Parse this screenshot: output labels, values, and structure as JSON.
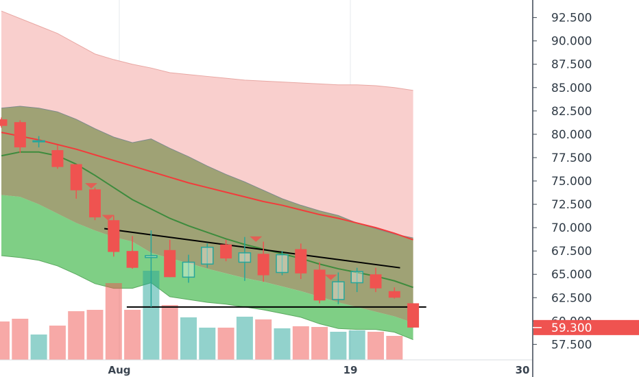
{
  "chart_data": {
    "type": "candlestick",
    "x_axis": {
      "tick_labels": [
        "Aug",
        "19",
        "30"
      ]
    },
    "y_axis": {
      "range": [
        56.5,
        93.5
      ],
      "tick_labels": [
        "92.500",
        "90.000",
        "87.500",
        "85.000",
        "82.500",
        "80.000",
        "77.500",
        "75.000",
        "72.500",
        "70.000",
        "67.500",
        "65.000",
        "62.500",
        "60.000",
        "57.500"
      ],
      "current_price_label": "59.300",
      "current_price_value": 59.3,
      "current_price_color": "#ef5350"
    },
    "colors": {
      "up": "#26a69a",
      "down": "#ef5350",
      "ma_red": "#f23b3b",
      "ma_green": "#3d8b3d",
      "cloud_outer": "#f9cfcd",
      "cloud_olive": "#9fa275",
      "cloud_green": "#7fcf85",
      "trendline": "#000000"
    },
    "candles": [
      {
        "o": 81.6,
        "h": 81.8,
        "l": 80.7,
        "c": 80.9
      },
      {
        "o": 81.3,
        "h": 81.5,
        "l": 78.0,
        "c": 78.6
      },
      {
        "o": 79.2,
        "h": 79.8,
        "l": 78.6,
        "c": 79.3
      },
      {
        "o": 78.3,
        "h": 78.8,
        "l": 76.3,
        "c": 76.5
      },
      {
        "o": 76.8,
        "h": 76.8,
        "l": 73.1,
        "c": 74.0
      },
      {
        "o": 74.1,
        "h": 74.3,
        "l": 70.8,
        "c": 71.1
      },
      {
        "o": 70.8,
        "h": 71.3,
        "l": 66.9,
        "c": 67.4
      },
      {
        "o": 67.5,
        "h": 69.1,
        "l": 65.6,
        "c": 65.7
      },
      {
        "o": 66.8,
        "h": 69.7,
        "l": 61.5,
        "c": 67.0
      },
      {
        "o": 67.6,
        "h": 68.7,
        "l": 64.7,
        "c": 64.7
      },
      {
        "o": 64.7,
        "h": 67.1,
        "l": 64.1,
        "c": 66.3
      },
      {
        "o": 66.1,
        "h": 68.3,
        "l": 65.7,
        "c": 67.9
      },
      {
        "o": 68.2,
        "h": 68.7,
        "l": 66.4,
        "c": 66.7
      },
      {
        "o": 66.3,
        "h": 69.0,
        "l": 64.3,
        "c": 67.3
      },
      {
        "o": 67.2,
        "h": 68.5,
        "l": 64.2,
        "c": 64.9
      },
      {
        "o": 65.2,
        "h": 67.5,
        "l": 64.9,
        "c": 67.1
      },
      {
        "o": 67.7,
        "h": 68.3,
        "l": 64.5,
        "c": 65.1
      },
      {
        "o": 65.5,
        "h": 66.3,
        "l": 61.9,
        "c": 62.2
      },
      {
        "o": 62.3,
        "h": 65.2,
        "l": 61.8,
        "c": 64.2
      },
      {
        "o": 64.1,
        "h": 65.7,
        "l": 63.1,
        "c": 65.3
      },
      {
        "o": 65.0,
        "h": 65.7,
        "l": 63.1,
        "c": 63.5
      },
      {
        "o": 63.2,
        "h": 63.6,
        "l": 62.4,
        "c": 62.5
      },
      {
        "o": 61.9,
        "h": 61.9,
        "l": 59.3,
        "c": 59.3
      }
    ],
    "volumes": [
      {
        "v": 56,
        "dir": "down"
      },
      {
        "v": 60,
        "dir": "down"
      },
      {
        "v": 37,
        "dir": "up"
      },
      {
        "v": 50,
        "dir": "down"
      },
      {
        "v": 71,
        "dir": "down"
      },
      {
        "v": 73,
        "dir": "down"
      },
      {
        "v": 112,
        "dir": "down"
      },
      {
        "v": 73,
        "dir": "down"
      },
      {
        "v": 130,
        "dir": "up"
      },
      {
        "v": 80,
        "dir": "down"
      },
      {
        "v": 62,
        "dir": "up"
      },
      {
        "v": 47,
        "dir": "up"
      },
      {
        "v": 47,
        "dir": "down"
      },
      {
        "v": 63,
        "dir": "up"
      },
      {
        "v": 59,
        "dir": "down"
      },
      {
        "v": 46,
        "dir": "up"
      },
      {
        "v": 49,
        "dir": "down"
      },
      {
        "v": 48,
        "dir": "down"
      },
      {
        "v": 41,
        "dir": "up"
      },
      {
        "v": 43,
        "dir": "up"
      },
      {
        "v": 41,
        "dir": "down"
      },
      {
        "v": 35,
        "dir": "down"
      },
      {
        "v": 0,
        "dir": "down"
      }
    ],
    "bands": {
      "outer_upper": [
        93.2,
        92.4,
        91.6,
        90.8,
        89.7,
        88.6,
        88.0,
        87.5,
        87.1,
        86.6,
        86.4,
        86.2,
        86.0,
        85.8,
        85.7,
        85.6,
        85.5,
        85.4,
        85.3,
        85.3,
        85.2,
        85.0,
        84.7
      ],
      "outer_lower": [
        70.0,
        69.9,
        69.7,
        69.5,
        69.2,
        68.9,
        68.6,
        68.3,
        68.0,
        67.7,
        67.4,
        67.0,
        66.5,
        65.8,
        65.0,
        64.2,
        63.5,
        62.8,
        62.0,
        61.2,
        60.5,
        59.9,
        59.4
      ],
      "olive_upper": [
        82.8,
        83.0,
        82.8,
        82.4,
        81.6,
        80.6,
        79.7,
        79.1,
        79.5,
        78.5,
        77.6,
        76.6,
        75.7,
        74.9,
        74.0,
        73.1,
        72.4,
        71.8,
        71.3,
        70.5,
        69.9,
        69.3,
        68.9
      ],
      "olive_lower": [
        73.5,
        73.3,
        72.5,
        71.5,
        70.5,
        69.7,
        69.0,
        68.5,
        67.3,
        66.7,
        66.2,
        65.6,
        65.1,
        64.6,
        64.2,
        63.7,
        63.2,
        62.6,
        62.0,
        61.5,
        61.0,
        60.5,
        59.8
      ],
      "green_lower": [
        67.0,
        66.8,
        66.5,
        65.9,
        65.0,
        64.0,
        63.5,
        63.5,
        64.1,
        62.6,
        62.3,
        62.0,
        61.8,
        61.5,
        61.2,
        60.8,
        60.4,
        59.7,
        59.2,
        59.1,
        59.1,
        58.8,
        58.0
      ],
      "ma_red": [
        80.2,
        79.8,
        79.4,
        78.9,
        78.4,
        77.8,
        77.2,
        76.6,
        76.0,
        75.4,
        74.8,
        74.3,
        73.8,
        73.3,
        72.8,
        72.4,
        71.9,
        71.4,
        71.0,
        70.5,
        70.0,
        69.4,
        68.7
      ],
      "ma_green": [
        77.7,
        78.1,
        78.1,
        77.7,
        76.8,
        75.6,
        74.3,
        73.0,
        72.0,
        71.0,
        70.2,
        69.5,
        68.8,
        68.2,
        67.7,
        67.2,
        66.7,
        66.1,
        65.6,
        65.2,
        64.8,
        64.3,
        63.6
      ]
    },
    "trendlines": [
      {
        "from": {
          "candle": 5.5,
          "value": 69.9
        },
        "to": {
          "candle": 21.3,
          "value": 65.7
        }
      },
      {
        "from": {
          "candle": 6.7,
          "value": 61.5
        },
        "to": {
          "candle": 22.7,
          "value": 61.5
        }
      }
    ],
    "markers": [
      {
        "candle": 4.8,
        "value": 74.4,
        "type": "down-triangle"
      },
      {
        "candle": 5.7,
        "value": 71.0,
        "type": "down-triangle"
      },
      {
        "candle": 13.6,
        "value": 68.7,
        "type": "down-triangle"
      },
      {
        "candle": 17.6,
        "value": 64.6,
        "type": "down-triangle"
      }
    ]
  }
}
